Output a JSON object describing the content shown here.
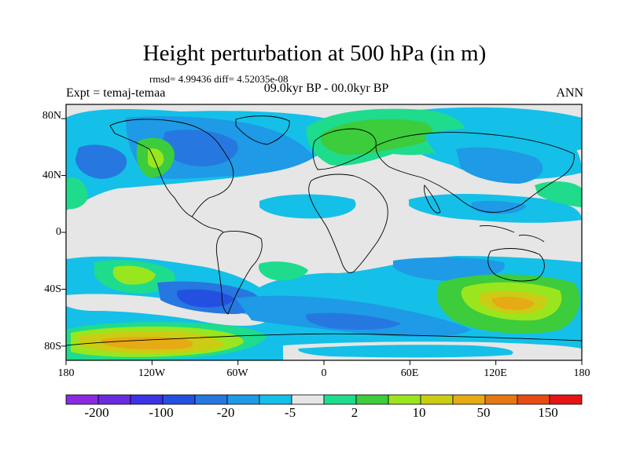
{
  "title": "Height perturbation at 500 hPa (in m)",
  "stats": "rmsd= 4.99436 diff= 4.52035e-08",
  "left_label": "Expt = temaj-temaa",
  "center_label": "09.0kyr BP - 00.0kyr BP",
  "right_label": "ANN",
  "map": {
    "lat_ticks": [
      "80N",
      "40N",
      "0",
      "40S",
      "80S"
    ],
    "lon_ticks": [
      "180",
      "120W",
      "60W",
      "0",
      "60E",
      "120E",
      "180"
    ],
    "lat_values": [
      80,
      40,
      0,
      -40,
      -80
    ],
    "lon_values": [
      -180,
      -120,
      -60,
      0,
      60,
      120,
      180
    ],
    "lat_range": [
      -90,
      90
    ],
    "lon_range": [
      -180,
      180
    ]
  },
  "colorbar": {
    "colors": [
      "#8a2be2",
      "#6a2be0",
      "#3c32e6",
      "#2450e0",
      "#2678e0",
      "#1e9ae6",
      "#14c0e8",
      "#e6e6e6",
      "#1edc8c",
      "#3ccc3c",
      "#9ae61e",
      "#cccc14",
      "#e6aa14",
      "#e67814",
      "#e64b14",
      "#e61414"
    ],
    "labels": [
      "-200",
      "-100",
      "-20",
      "-5",
      "2",
      "10",
      "50",
      "150"
    ]
  }
}
